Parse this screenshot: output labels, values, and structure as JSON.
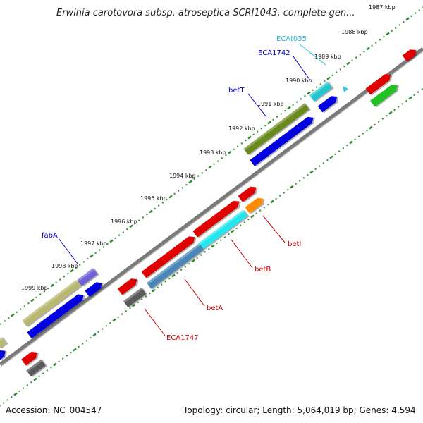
{
  "title": "Erwinia carotovora subsp. atroseptica SCRI1043, complete gen...",
  "footer": {
    "accession": "Accession: NC_004547",
    "summary": "Topology: circular; Length: 5,064,019 bp; Genes: 4,594"
  },
  "ticks": [
    "1987 kbp",
    "1988 kbp",
    "1989 kbp",
    "1990 kbp",
    "1991 kbp",
    "1992 kbp",
    "1993 kbp",
    "1994 kbp",
    "1995 kbp",
    "1996 kbp",
    "1997 kbp",
    "1998 kbp",
    "1999 kbp"
  ],
  "colors": {
    "backbone": "#7a7a7a",
    "dots": "#2a8a2a",
    "red": "#e00000",
    "blue": "#0000e0",
    "olive": "#6b8a1e",
    "khaki": "#b8b870",
    "cyan": "#22e5ee",
    "teal": "#22c6cc",
    "steel": "#4a86b8",
    "orange": "#ff8c00",
    "green": "#22c022",
    "gray": "#5a5a5a",
    "purple": "#7060d8",
    "label_blue": "#0000cc",
    "label_red": "#cc0000",
    "label_cyan": "#22b8d8"
  },
  "gene_labels": [
    {
      "id": "ECAt035",
      "text": "ECAt035",
      "color": "label_cyan"
    },
    {
      "id": "ECA1742",
      "text": "ECA1742",
      "color": "label_blue"
    },
    {
      "id": "betT",
      "text": "betT",
      "color": "label_blue"
    },
    {
      "id": "fabA",
      "text": "fabA",
      "color": "label_blue"
    },
    {
      "id": "betI",
      "text": "betI",
      "color": "label_red"
    },
    {
      "id": "betB",
      "text": "betB",
      "color": "label_red"
    },
    {
      "id": "betA",
      "text": "betA",
      "color": "label_red"
    },
    {
      "id": "ECA1747",
      "text": "ECA1747",
      "color": "label_red"
    }
  ]
}
